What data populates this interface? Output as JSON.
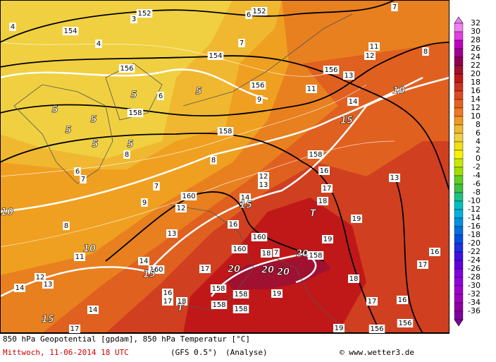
{
  "map_labels": [
    "152",
    "3",
    "154",
    "4",
    "4",
    "156",
    "5",
    "6",
    "5",
    "5",
    "158",
    "5",
    "5",
    "5",
    "5",
    "8",
    "6",
    "7",
    "7",
    "8",
    "9",
    "10",
    "8",
    "160",
    "12",
    "13",
    "10",
    "11",
    "14",
    "160",
    "15",
    "12",
    "13",
    "14",
    "14",
    "15",
    "17",
    "16",
    "17",
    "18",
    "T",
    "17",
    "16",
    "160",
    "160",
    "18",
    "7",
    "20",
    "20",
    "20",
    "20",
    "158",
    "158",
    "158",
    "158",
    "158",
    "19",
    "14",
    "15",
    "12",
    "13",
    "158",
    "16",
    "17",
    "18",
    "T",
    "19",
    "19",
    "16",
    "17",
    "18",
    "17",
    "16",
    "19",
    "156",
    "156",
    "13",
    "15",
    "14",
    "10",
    "11",
    "13",
    "156",
    "12",
    "11",
    "8",
    "7",
    "154",
    "156",
    "6",
    "152",
    "7",
    "9",
    "158"
  ],
  "colorbar": {
    "levels": [
      32,
      30,
      28,
      26,
      24,
      22,
      20,
      18,
      16,
      14,
      12,
      10,
      8,
      6,
      4,
      2,
      0,
      -2,
      -4,
      -6,
      -8,
      -10,
      -12,
      -14,
      -16,
      -18,
      -20,
      -22,
      -24,
      -26,
      -28,
      -30,
      -32,
      -34,
      -36
    ],
    "colors": [
      "#f080f0",
      "#e040e0",
      "#c000c0",
      "#a00090",
      "#900050",
      "#a01030",
      "#c01818",
      "#d03020",
      "#e04820",
      "#e86020",
      "#f07820",
      "#f09820",
      "#f0b830",
      "#f0d040",
      "#f0e010",
      "#f8f400",
      "#c8e800",
      "#a0e000",
      "#60d020",
      "#40c040",
      "#20c080",
      "#00c0c0",
      "#00b0e0",
      "#0090e0",
      "#0070e0",
      "#0050e0",
      "#2030e0",
      "#4010e0",
      "#6000e0",
      "#8000e0",
      "#9000e0",
      "#a000d0",
      "#a000c0",
      "#9000a0",
      "#8000a0"
    ]
  },
  "footer": {
    "line1": "850 hPa Geopotential [gpdam], 850 hPa Temperatur [°C]",
    "date": "Mittwoch, 11-06-2014  18 UTC",
    "model": "(GFS 0.5°)",
    "kind": "(Analyse)",
    "site": "© www.wetter3.de"
  }
}
